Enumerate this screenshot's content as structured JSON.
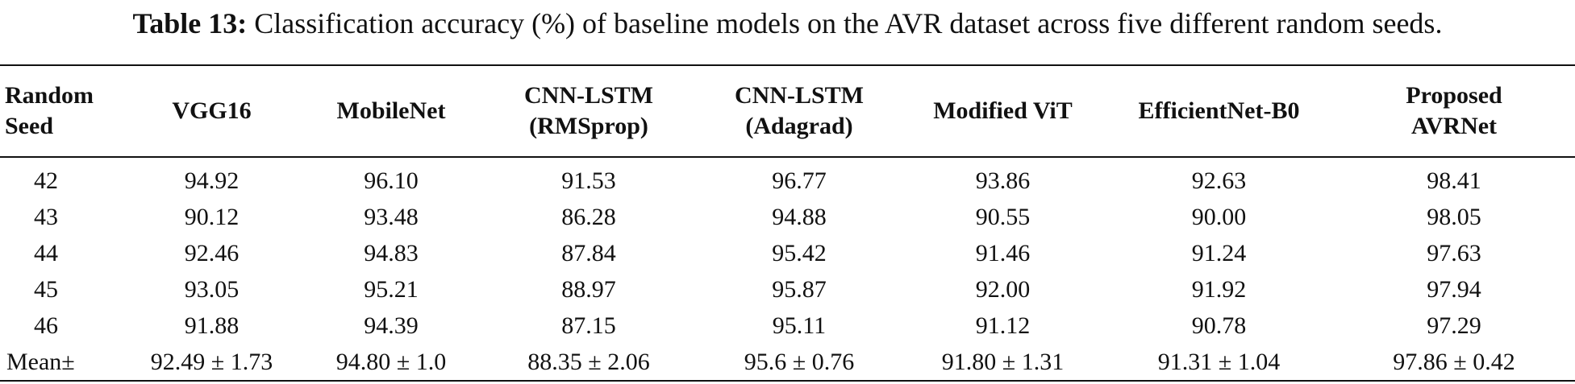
{
  "caption": {
    "label": "Table 13:",
    "text": "Classification accuracy (%) of baseline models on the AVR dataset across five different random seeds."
  },
  "table": {
    "headers": [
      [
        "Random",
        "Seed"
      ],
      [
        "VGG16"
      ],
      [
        "MobileNet"
      ],
      [
        "CNN-LSTM",
        "(RMSprop)"
      ],
      [
        "CNN-LSTM",
        "(Adagrad)"
      ],
      [
        "Modified ViT"
      ],
      [
        "EfficientNet-B0"
      ],
      [
        "Proposed",
        "AVRNet"
      ]
    ],
    "rows": [
      [
        "42",
        "94.92",
        "96.10",
        "91.53",
        "96.77",
        "93.86",
        "92.63",
        "98.41"
      ],
      [
        "43",
        "90.12",
        "93.48",
        "86.28",
        "94.88",
        "90.55",
        "90.00",
        "98.05"
      ],
      [
        "44",
        "92.46",
        "94.83",
        "87.84",
        "95.42",
        "91.46",
        "91.24",
        "97.63"
      ],
      [
        "45",
        "93.05",
        "95.21",
        "88.97",
        "95.87",
        "92.00",
        "91.92",
        "97.94"
      ],
      [
        "46",
        "91.88",
        "94.39",
        "87.15",
        "95.11",
        "91.12",
        "90.78",
        "97.29"
      ],
      [
        "Mean±",
        "92.49 ± 1.73",
        "94.80 ± 1.0",
        "88.35 ± 2.06",
        "95.6 ± 0.76",
        "91.80 ± 1.31",
        "91.31 ± 1.04",
        "97.86 ± 0.42"
      ]
    ]
  }
}
